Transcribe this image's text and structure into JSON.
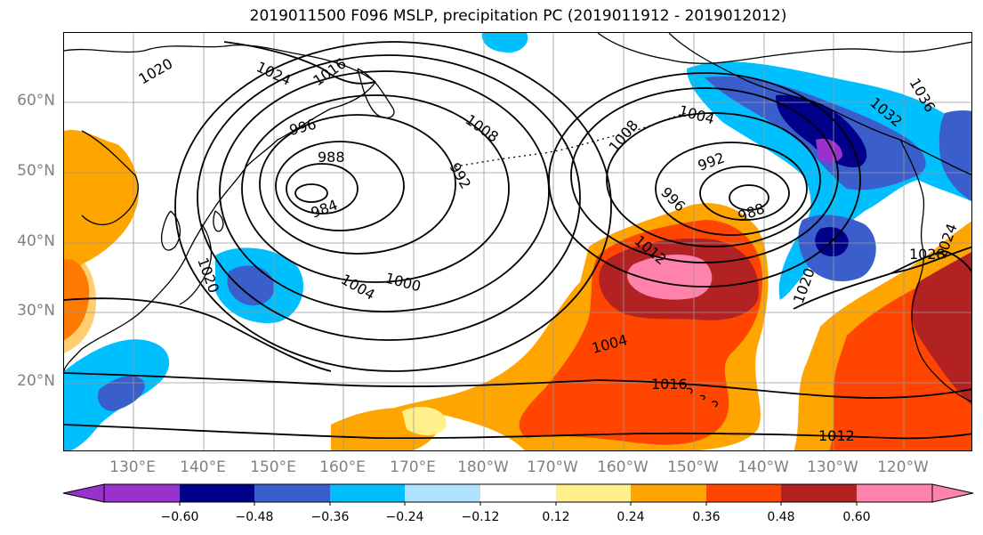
{
  "title": "2019011500 F096 MSLP, precipitation PC (2019011912 - 2019012012)",
  "lat_labels": [
    "60°N",
    "50°N",
    "40°N",
    "30°N",
    "20°N"
  ],
  "lon_labels": [
    "130°E",
    "140°E",
    "150°E",
    "160°E",
    "170°E",
    "180°W",
    "170°W",
    "160°W",
    "150°W",
    "140°W",
    "130°W",
    "120°W"
  ],
  "contour_labels": [
    "1020",
    "1024",
    "1016",
    "996",
    "988",
    "984",
    "1008",
    "992",
    "1004",
    "1008",
    "1004",
    "992",
    "996",
    "988",
    "1012",
    "1000",
    "1004",
    "1020",
    "1020",
    "1016",
    "1012",
    "1028",
    "1024",
    "1032",
    "1036"
  ],
  "colorbar": {
    "ticks": [
      "−0.60",
      "−0.48",
      "−0.36",
      "−0.24",
      "−0.12",
      "0.12",
      "0.24",
      "0.36",
      "0.48",
      "0.60"
    ],
    "colors": [
      "#9932cc",
      "#00008b",
      "#3a5fcd",
      "#00bfff",
      "#b0e2ff",
      "#ffffff",
      "#fff08b",
      "#ffa500",
      "#ff4500",
      "#b22222",
      "#ff82ab",
      "#ff82ab"
    ]
  }
}
